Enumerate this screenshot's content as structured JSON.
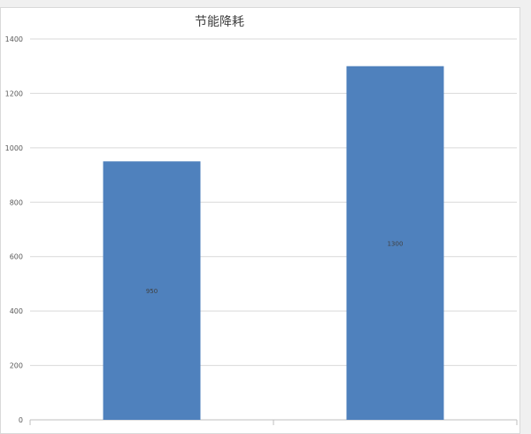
{
  "chart_data": {
    "type": "bar",
    "title": "节能降耗",
    "categories": [
      "",
      ""
    ],
    "values": [
      950,
      1300
    ],
    "ylim": [
      0,
      1400
    ],
    "yticks": [
      0,
      200,
      400,
      600,
      800,
      1000,
      1200,
      1400
    ],
    "data_labels": [
      "950",
      "1300"
    ],
    "xlabel": "",
    "ylabel": "",
    "grid": true,
    "bar_color": "#4f81bd"
  }
}
